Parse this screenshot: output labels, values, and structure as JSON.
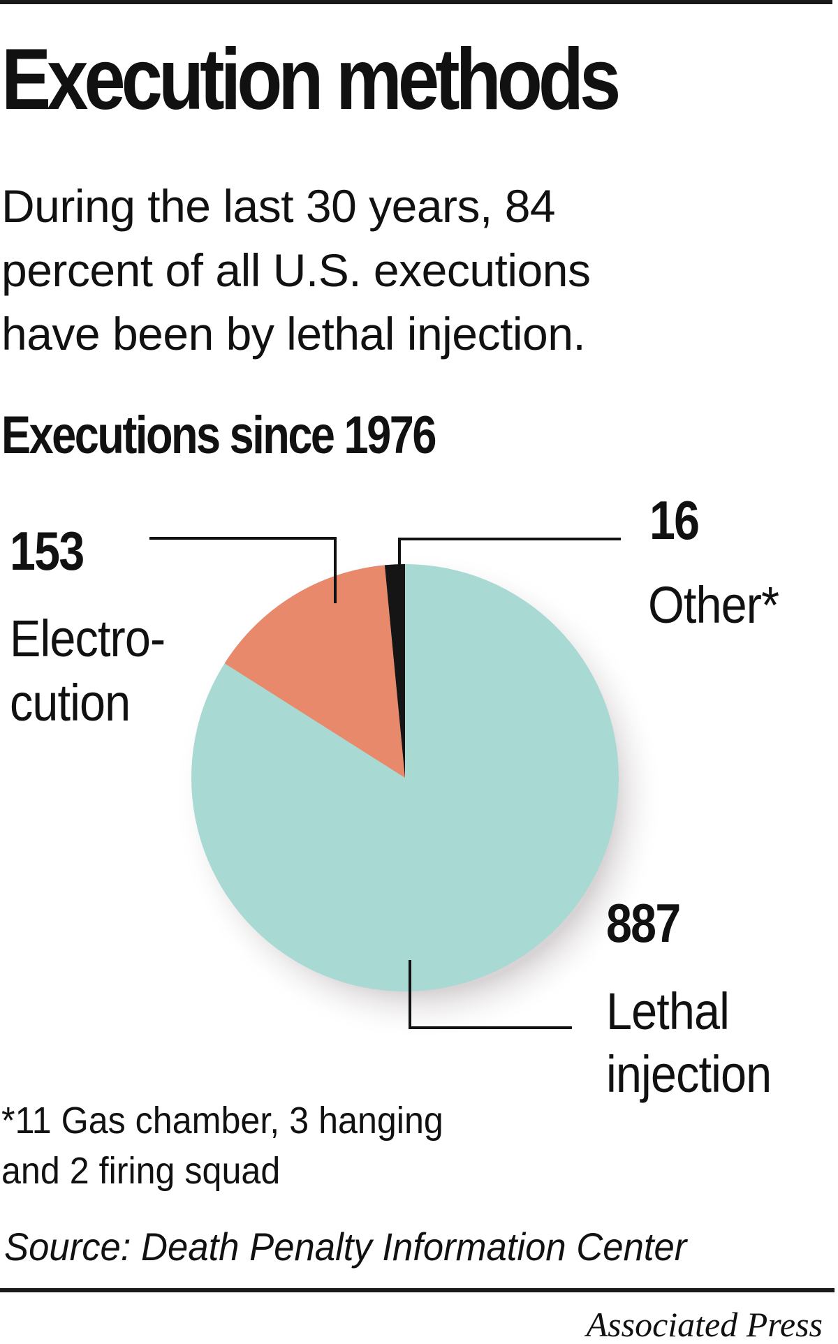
{
  "header": {
    "title": "Execution methods",
    "subtitle_lines": [
      "During the last 30 years, 84",
      "percent of all U.S. executions",
      "have been by lethal injection."
    ]
  },
  "chart": {
    "heading": "Executions since 1976",
    "labels": {
      "electrocution": {
        "value": "153",
        "line1": "Electro-",
        "line2": "cution"
      },
      "other": {
        "value": "16",
        "line1": "Other*"
      },
      "lethal": {
        "value": "887",
        "line1": "Lethal",
        "line2": "injection"
      }
    },
    "colors": {
      "lethal_injection": "#a9d9d3",
      "electrocution": "#e8896b",
      "other": "#151515"
    }
  },
  "footnote": {
    "lines": [
      "*11 Gas chamber, 3 hanging",
      "and 2 firing squad"
    ]
  },
  "source": "Source: Death Penalty Information Center",
  "credit": "Associated Press",
  "chart_data": {
    "type": "pie",
    "title": "Executions since 1976",
    "subtitle": "During the last 30 years, 84 percent of all U.S. executions have been by lethal injection.",
    "categories": [
      "Lethal injection",
      "Electrocution",
      "Other*"
    ],
    "values": [
      887,
      153,
      16
    ],
    "colors": [
      "#a9d9d3",
      "#e8896b",
      "#151515"
    ],
    "annotations": [
      "*11 Gas chamber, 3 hanging and 2 firing squad"
    ],
    "source": "Death Penalty Information Center",
    "credit": "Associated Press",
    "legend": "none (direct labels with leader lines)",
    "start_angle": "12 o'clock, counterclockwise: Other, Electrocution, then Lethal injection"
  }
}
